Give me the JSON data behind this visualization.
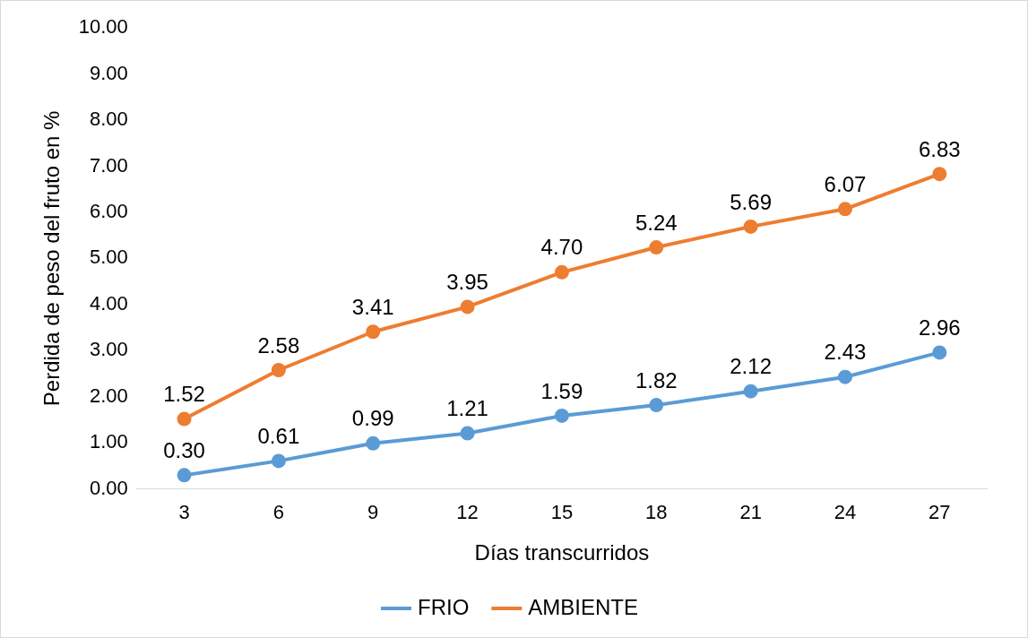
{
  "chart_data": {
    "type": "line",
    "xlabel": "Días transcurridos",
    "ylabel": "Perdida de peso del fruto en %",
    "categories": [
      "3",
      "6",
      "9",
      "12",
      "15",
      "18",
      "21",
      "24",
      "27"
    ],
    "series": [
      {
        "name": "FRIO",
        "color": "#5b9bd5",
        "values": [
          0.3,
          0.61,
          0.99,
          1.21,
          1.59,
          1.82,
          2.12,
          2.43,
          2.96
        ],
        "value_labels": [
          "0.30",
          "0.61",
          "0.99",
          "1.21",
          "1.59",
          "1.82",
          "2.12",
          "2.43",
          "2.96"
        ]
      },
      {
        "name": "AMBIENTE",
        "color": "#ed7d31",
        "values": [
          1.52,
          2.58,
          3.41,
          3.95,
          4.7,
          5.24,
          5.69,
          6.07,
          6.83
        ],
        "value_labels": [
          "1.52",
          "2.58",
          "3.41",
          "3.95",
          "4.70",
          "5.24",
          "5.69",
          "6.07",
          "6.83"
        ]
      }
    ],
    "ylim": [
      0,
      10
    ],
    "yticks": [
      {
        "value": 0,
        "label": "0.00"
      },
      {
        "value": 1,
        "label": "1.00"
      },
      {
        "value": 2,
        "label": "2.00"
      },
      {
        "value": 3,
        "label": "3.00"
      },
      {
        "value": 4,
        "label": "4.00"
      },
      {
        "value": 5,
        "label": "5.00"
      },
      {
        "value": 6,
        "label": "6.00"
      },
      {
        "value": 7,
        "label": "7.00"
      },
      {
        "value": 8,
        "label": "8.00"
      },
      {
        "value": 9,
        "label": "9.00"
      },
      {
        "value": 10,
        "label": "10.00"
      }
    ],
    "grid": false,
    "legend": "bottom",
    "marker": "circle",
    "line_style": "solid"
  }
}
